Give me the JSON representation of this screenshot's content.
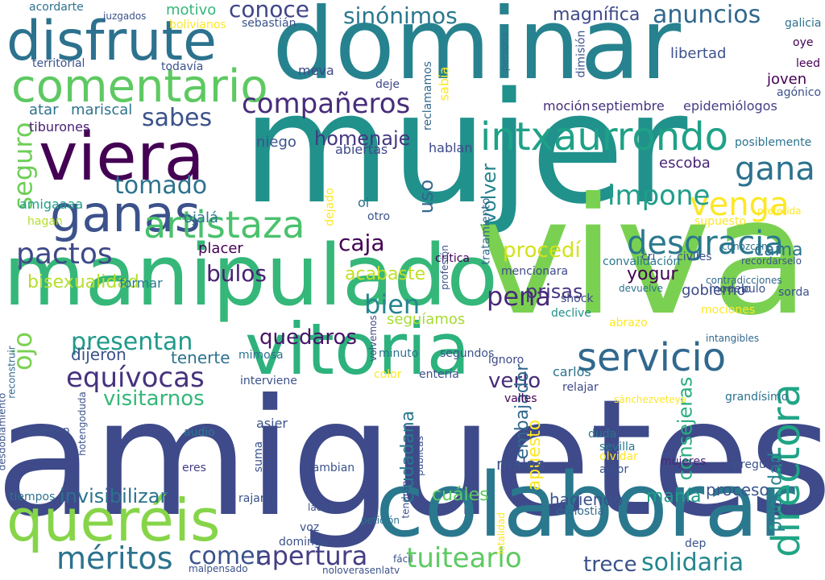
{
  "words": [
    {
      "text": "amiguetes",
      "color": "#3e4a89"
    },
    {
      "text": "mujer",
      "color": "#21918c"
    },
    {
      "text": "dominar",
      "color": "#26828e"
    },
    {
      "text": "viva",
      "color": "#7ad151"
    },
    {
      "text": "manipulado",
      "color": "#35b779"
    },
    {
      "text": "colaborar",
      "color": "#2a788e"
    },
    {
      "text": "queréis",
      "color": "#86d549"
    },
    {
      "text": "vitoria",
      "color": "#2db27d"
    },
    {
      "text": "viera",
      "color": "#440154"
    },
    {
      "text": "disfrute",
      "color": "#2c728e"
    },
    {
      "text": "comentario",
      "color": "#5ec962"
    },
    {
      "text": "ganas",
      "color": "#3b528b"
    },
    {
      "text": "intxaurrondo",
      "color": "#1fa187"
    },
    {
      "text": "artistaza",
      "color": "#4ac16d"
    },
    {
      "text": "desgracia",
      "color": "#2a788e"
    },
    {
      "text": "servicio",
      "color": "#31688e"
    },
    {
      "text": "directora",
      "color": "#20a486"
    },
    {
      "text": "méritos",
      "color": "#2c728e"
    },
    {
      "text": "equívocas",
      "color": "#46327e"
    },
    {
      "text": "compañeros",
      "color": "#472d7b"
    },
    {
      "text": "venga",
      "color": "#fde725"
    },
    {
      "text": "apertura",
      "color": "#433e85"
    },
    {
      "text": "solidaria",
      "color": "#24868e"
    },
    {
      "text": "gana",
      "color": "#2c728e"
    },
    {
      "text": "impone",
      "color": "#1f9e89"
    },
    {
      "text": "pactos",
      "color": "#3e4989"
    },
    {
      "text": "pena",
      "color": "#482878"
    },
    {
      "text": "tuitearlo",
      "color": "#5ec962"
    },
    {
      "text": "sinónimos",
      "color": "#2a788e"
    },
    {
      "text": "anuncios",
      "color": "#31688e"
    },
    {
      "text": "conoce",
      "color": "#404688"
    },
    {
      "text": "sabes",
      "color": "#3b528b"
    },
    {
      "text": "tomado",
      "color": "#2c728e"
    },
    {
      "text": "bulos",
      "color": "#482173"
    },
    {
      "text": "presentan",
      "color": "#1f9a8a"
    },
    {
      "text": "bien",
      "color": "#25858e"
    },
    {
      "text": "seguro",
      "color": "#6ece58"
    },
    {
      "text": "homenaje",
      "color": "#453781"
    },
    {
      "text": "ojo",
      "color": "#7ad151"
    },
    {
      "text": "visitarnos",
      "color": "#35b779"
    },
    {
      "text": "comer",
      "color": "#3b528b"
    },
    {
      "text": "trece",
      "color": "#3b528b"
    },
    {
      "text": "invisibilizar",
      "color": "#2c728e"
    },
    {
      "text": "caja",
      "color": "#440154"
    },
    {
      "text": "bisexualidad",
      "color": "#b5de2b"
    },
    {
      "text": "acabaste",
      "color": "#c2df23"
    },
    {
      "text": "procedí",
      "color": "#d2e21b"
    },
    {
      "text": "prisas",
      "color": "#46337f"
    },
    {
      "text": "quedaros",
      "color": "#481467"
    },
    {
      "text": "volver",
      "color": "#25848e"
    },
    {
      "text": "manía",
      "color": "#1f9e89"
    },
    {
      "text": "verlo",
      "color": "#472c7a"
    },
    {
      "text": "consejeras",
      "color": "#27ad81"
    },
    {
      "text": "prioridad",
      "color": "#26828e"
    },
    {
      "text": "proceso",
      "color": "#39568c"
    },
    {
      "text": "haciendo",
      "color": "#3b528b"
    },
    {
      "text": "cuáles",
      "color": "#5ec962"
    },
    {
      "text": "seguíamos",
      "color": "#a8db34"
    },
    {
      "text": "tenerte",
      "color": "#2c728e"
    },
    {
      "text": "dijeron",
      "color": "#3b528b"
    },
    {
      "text": "ciudadana",
      "color": "#2a788e"
    },
    {
      "text": "embajador",
      "color": "#31688e"
    },
    {
      "text": "escoba",
      "color": "#482374"
    },
    {
      "text": "cama",
      "color": "#2c728e"
    },
    {
      "text": "yogur",
      "color": "#440154"
    },
    {
      "text": "uso",
      "color": "#31688e"
    },
    {
      "text": "apuesto",
      "color": "#fde725"
    },
    {
      "text": "malas",
      "color": "#3b528b"
    },
    {
      "text": "gobierno",
      "color": "#3e4989"
    },
    {
      "text": "moción",
      "color": "#472d7b"
    },
    {
      "text": "septiembre",
      "color": "#46327e"
    },
    {
      "text": "epidemiólogos",
      "color": "#433e85"
    },
    {
      "text": "libertad",
      "color": "#3b528b"
    },
    {
      "text": "joven",
      "color": "#440154"
    },
    {
      "text": "magnífica",
      "color": "#3e4a89"
    },
    {
      "text": "mariscal",
      "color": "#2c728e"
    },
    {
      "text": "tiburones",
      "color": "#481f70"
    },
    {
      "text": "formar",
      "color": "#2a788e"
    },
    {
      "text": "placer",
      "color": "#440154"
    },
    {
      "text": "ojalá",
      "color": "#2c728e"
    },
    {
      "text": "amigaaaa",
      "color": "#1f9e89"
    },
    {
      "text": "hagan",
      "color": "#b5de2b"
    },
    {
      "text": "territorial",
      "color": "#3b528b"
    },
    {
      "text": "todavía",
      "color": "#3b528b"
    },
    {
      "text": "motivo",
      "color": "#35b779"
    },
    {
      "text": "juzgados",
      "color": "#3b528b"
    },
    {
      "text": "bolivianos",
      "color": "#fde725"
    },
    {
      "text": "acordarte",
      "color": "#2c728e"
    },
    {
      "text": "sebastián",
      "color": "#3b528b"
    },
    {
      "text": "crítica",
      "color": "#440154"
    },
    {
      "text": "convalidación",
      "color": "#2a788e"
    },
    {
      "text": "contradicciones",
      "color": "#31688e"
    },
    {
      "text": "niego",
      "color": "#3b528b"
    },
    {
      "text": "mociones",
      "color": "#fde725"
    },
    {
      "text": "shock",
      "color": "#3e4989"
    },
    {
      "text": "declive",
      "color": "#21918c"
    },
    {
      "text": "abrazo",
      "color": "#fde725"
    },
    {
      "text": "intangibles",
      "color": "#31688e"
    },
    {
      "text": "grandísimo",
      "color": "#2c728e"
    },
    {
      "text": "valles",
      "color": "#440154"
    },
    {
      "text": "segundos",
      "color": "#3b528b"
    },
    {
      "text": "carlos",
      "color": "#2c728e"
    },
    {
      "text": "ignoro",
      "color": "#3e4989"
    },
    {
      "text": "relajar",
      "color": "#3e4989"
    },
    {
      "text": "minuto",
      "color": "#2c728e"
    },
    {
      "text": "duda",
      "color": "#2c728e"
    },
    {
      "text": "sevilla",
      "color": "#2a788e"
    },
    {
      "text": "actor",
      "color": "#3b528b"
    },
    {
      "text": "mujeres",
      "color": "#482878"
    },
    {
      "text": "pregunto",
      "color": "#3b528b"
    },
    {
      "text": "dónostia",
      "color": "#31688e"
    },
    {
      "text": "audio",
      "color": "#2a788e"
    },
    {
      "text": "asier",
      "color": "#3b528b"
    },
    {
      "text": "eres",
      "color": "#433e85"
    },
    {
      "text": "pueden",
      "color": "#3b528b"
    },
    {
      "text": "tiempos",
      "color": "#2c728e"
    },
    {
      "text": "rajarse",
      "color": "#3b528b"
    },
    {
      "text": "voz",
      "color": "#3b528b"
    },
    {
      "text": "domingo",
      "color": "#3b528b"
    },
    {
      "text": "malpensado",
      "color": "#3b528b"
    },
    {
      "text": "suma",
      "color": "#3b528b"
    },
    {
      "text": "cambian",
      "color": "#3b528b"
    },
    {
      "text": "mimosa",
      "color": "#2c728e"
    },
    {
      "text": "volvemos",
      "color": "#3e4989"
    },
    {
      "text": "mencionara",
      "color": "#3e4989"
    },
    {
      "text": "profesión",
      "color": "#3b528b"
    },
    {
      "text": "hablan",
      "color": "#3e4989"
    },
    {
      "text": "abiertas",
      "color": "#3e4989"
    },
    {
      "text": "deje",
      "color": "#3e4989"
    },
    {
      "text": "reclamamos",
      "color": "#31688e"
    },
    {
      "text": "sabía",
      "color": "#fde725"
    },
    {
      "text": "dimisión",
      "color": "#3b528b"
    },
    {
      "text": "atar",
      "color": "#2c728e"
    },
    {
      "text": "meva",
      "color": "#3e4989"
    },
    {
      "text": "oi",
      "color": "#2c728e"
    },
    {
      "text": "otro",
      "color": "#3b528b"
    },
    {
      "text": "dejado",
      "color": "#fde725"
    },
    {
      "text": "oye",
      "color": "#440154"
    },
    {
      "text": "leed",
      "color": "#440154"
    },
    {
      "text": "agónico",
      "color": "#3b528b"
    },
    {
      "text": "cri",
      "color": "#3b528b"
    },
    {
      "text": "civiles",
      "color": "#3b528b"
    },
    {
      "text": "supuesto",
      "color": "#fde725"
    },
    {
      "text": "posiblemente",
      "color": "#2c728e"
    },
    {
      "text": "preferida",
      "color": "#fde725"
    },
    {
      "text": "devuelve",
      "color": "#2c728e"
    },
    {
      "text": "recordarselo",
      "color": "#3b528b"
    },
    {
      "text": "sorda",
      "color": "#3b528b"
    },
    {
      "text": "modelo",
      "color": "#3b528b"
    },
    {
      "text": "bulo",
      "color": "#3b528b"
    },
    {
      "text": "tratamiento",
      "color": "#31688e"
    },
    {
      "text": "entería",
      "color": "#3b528b"
    },
    {
      "text": "color",
      "color": "#fde725"
    },
    {
      "text": "interviene",
      "color": "#3b528b"
    },
    {
      "text": "conozcan",
      "color": "#2c728e"
    },
    {
      "text": "persona",
      "color": "#2c728e"
    },
    {
      "text": "galicia",
      "color": "#2c728e"
    },
    {
      "text": "desdoblamiento",
      "color": "#3b528b"
    },
    {
      "text": "hotengoduda",
      "color": "#3b528b"
    },
    {
      "text": "reconstruir",
      "color": "#31688e"
    },
    {
      "text": "sánchezveteya",
      "color": "#fde725"
    },
    {
      "text": "contrastes",
      "color": "#3e4989"
    },
    {
      "text": "tendrán",
      "color": "#3b528b"
    },
    {
      "text": "públicas",
      "color": "#3b528b"
    },
    {
      "text": "dep",
      "color": "#3b528b"
    },
    {
      "text": "noloverasenlatv",
      "color": "#3b528b"
    },
    {
      "text": "petición",
      "color": "#2c728e"
    },
    {
      "text": "lados",
      "color": "#3b528b"
    },
    {
      "text": "letalidad",
      "color": "#fde725"
    },
    {
      "text": "olvidar",
      "color": "#fde725"
    },
    {
      "text": "fácil",
      "color": "#3b528b"
    }
  ]
}
